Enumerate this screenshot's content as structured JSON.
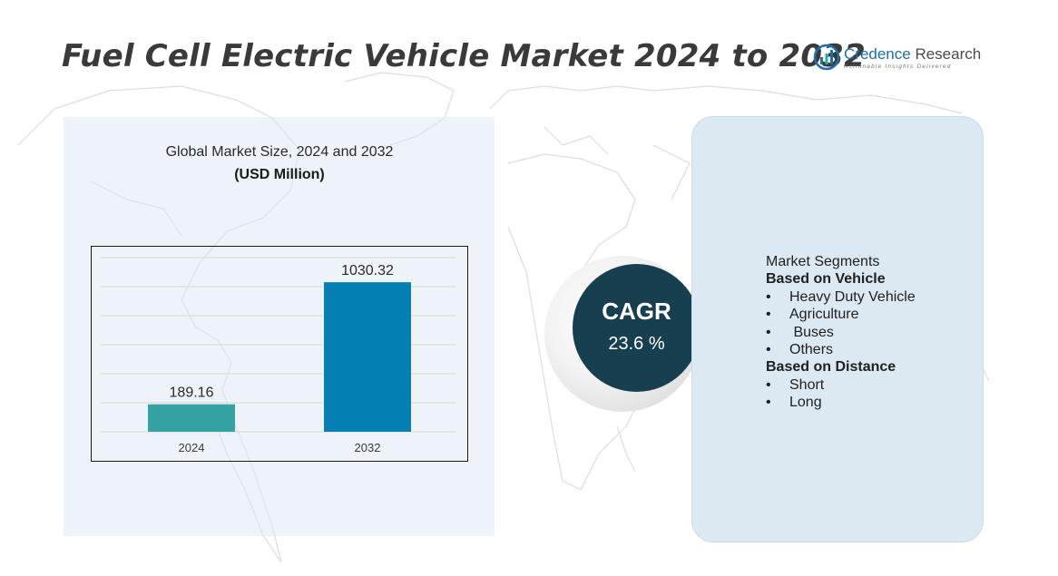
{
  "header": {
    "title": "Fuel Cell Electric Vehicle Market 2024 to 2032"
  },
  "logo": {
    "name_part1": "Credence",
    "name_part2": " Research",
    "tagline": "Actionable Insights Delivered"
  },
  "colors": {
    "bar_2024": "#35a3a3",
    "bar_2032": "#0580b4",
    "cagr_circle": "#173f4f",
    "panel": "#dde9f2"
  },
  "chart_heading": {
    "line1": "Global Market Size,  2024 and 2032",
    "line2": "(USD Million)"
  },
  "chart_data": {
    "type": "bar",
    "categories": [
      "2024",
      "2032"
    ],
    "values": [
      189.16,
      1030.32
    ],
    "title": "Global Market Size,  2024 and 2032",
    "ylabel": "(USD Million)",
    "xlabel": "",
    "ylim": [
      0,
      1200
    ],
    "grid": true
  },
  "cagr": {
    "label": "CAGR",
    "value": "23.6 %"
  },
  "segments": {
    "heading": "Market Segments",
    "groups": [
      {
        "title": "Based on Vehicle",
        "items": [
          "Heavy Duty Vehicle",
          "Agriculture",
          " Buses",
          "Others"
        ]
      },
      {
        "title": "Based on Distance",
        "items": [
          "Short",
          "Long"
        ]
      }
    ]
  }
}
